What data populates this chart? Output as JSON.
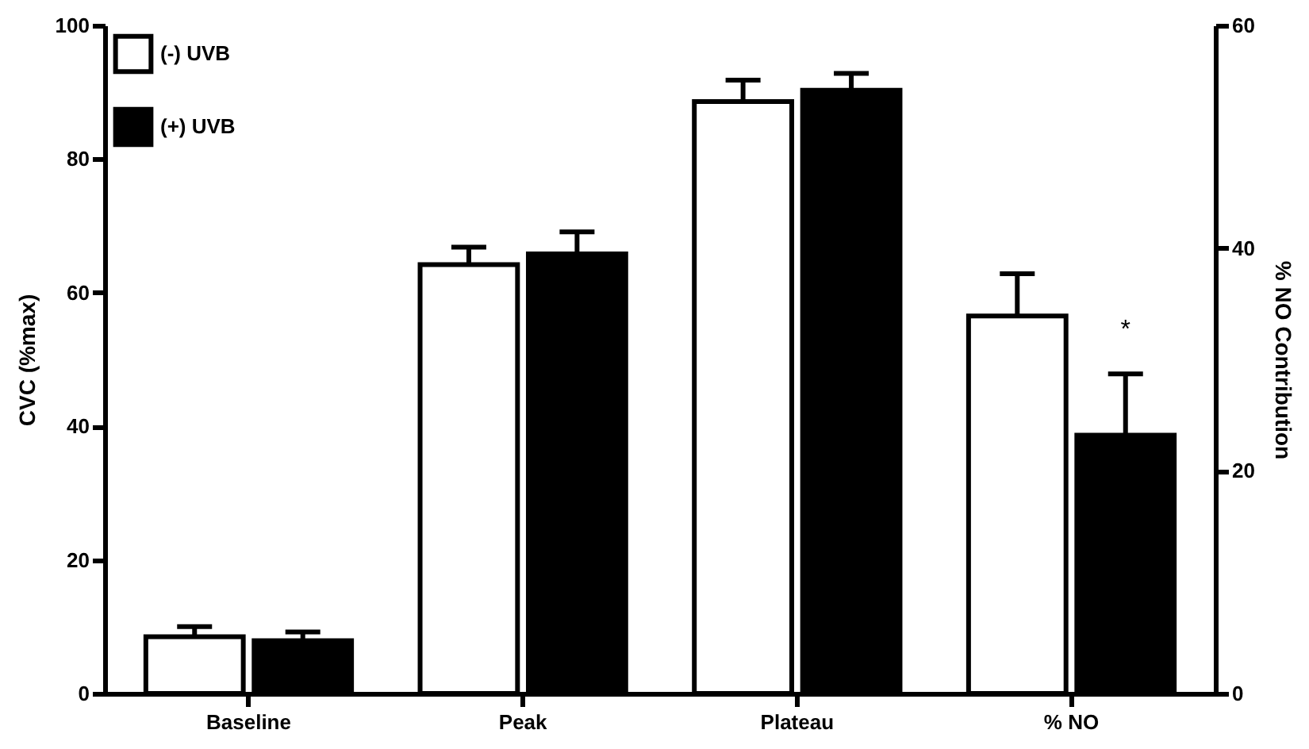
{
  "chart_data": {
    "type": "bar",
    "ylabel": "CVC (%max)",
    "y2label": "% NO Contribution",
    "categories": [
      "Baseline",
      "Peak",
      "Plateau",
      "% NO"
    ],
    "series": [
      {
        "name": "(-) UVB",
        "color": "#ffffff",
        "values": [
          8.5,
          64.2,
          88.6,
          null
        ],
        "errors": [
          [
            8.5,
            10.0
          ],
          [
            64.2,
            66.8
          ],
          [
            88.6,
            91.8
          ],
          null
        ]
      },
      {
        "name": "(+) UVB",
        "color": "#000000",
        "values": [
          7.9,
          65.8,
          90.3,
          null
        ],
        "errors": [
          [
            7.9,
            9.2
          ],
          [
            65.8,
            69.1
          ],
          [
            90.3,
            92.8
          ],
          null
        ]
      },
      {
        "color": "#ffffff",
        "axis": "y2",
        "values": [
          null,
          null,
          null,
          33.9
        ],
        "errors": [
          null,
          null,
          null,
          [
            33.9,
            37.7
          ]
        ]
      },
      {
        "color": "#000000",
        "axis": "y2",
        "values": [
          null,
          null,
          null,
          23.2
        ],
        "errors": [
          null,
          null,
          null,
          [
            23.2,
            28.7
          ]
        ]
      }
    ],
    "annotations": [
      "*"
    ],
    "ylim": [
      0,
      100
    ],
    "yticks": [
      0,
      20,
      40,
      60,
      80,
      100
    ],
    "y2lim": [
      0,
      60
    ],
    "y2ticks": [
      0,
      20,
      40,
      60
    ],
    "grid": false,
    "legend": "top left"
  }
}
